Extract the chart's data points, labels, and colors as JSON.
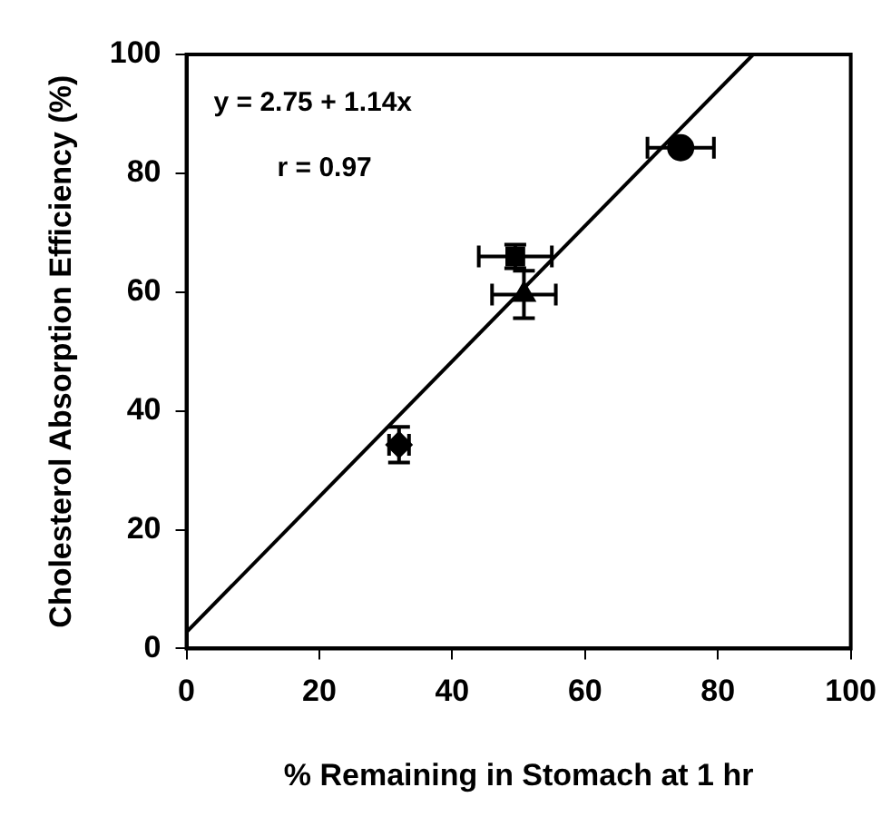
{
  "chart_data": {
    "type": "scatter",
    "xlabel": "% Remaining in Stomach at 1 hr",
    "ylabel": "Cholesterol Absorption Efficiency (%)",
    "xlim": [
      0,
      100
    ],
    "xticks": [
      0,
      20,
      40,
      60,
      80,
      100
    ],
    "ylim": [
      0,
      100
    ],
    "yticks": [
      0,
      20,
      40,
      60,
      80,
      100
    ],
    "grid": false,
    "legend": false,
    "annotations": [
      "y = 2.75 + 1.14x",
      "r = 0.97"
    ],
    "series": [
      {
        "type": "scatter",
        "marker": "circle",
        "color": "#000000",
        "x": [
          74.4
        ],
        "values": [
          84.3
        ],
        "errors": [
          1
        ],
        "xerrors": [
          5
        ]
      },
      {
        "type": "scatter",
        "marker": "square",
        "color": "#000000",
        "x": [
          49.5
        ],
        "values": [
          66.0
        ],
        "errors": [
          2
        ],
        "xerrors": [
          5.5
        ]
      },
      {
        "type": "scatter",
        "marker": "triangle",
        "color": "#000000",
        "x": [
          50.8
        ],
        "values": [
          59.6
        ],
        "errors": [
          4
        ],
        "xerrors": [
          4.8
        ]
      },
      {
        "type": "scatter",
        "marker": "diamond",
        "color": "#000000",
        "x": [
          32.0
        ],
        "values": [
          34.3
        ],
        "errors": [
          3
        ],
        "xerrors": [
          1.5
        ]
      },
      {
        "type": "line",
        "marker": "none",
        "color": "#000000",
        "x": [
          0,
          85.31
        ],
        "values": [
          2.75,
          100
        ]
      }
    ]
  }
}
